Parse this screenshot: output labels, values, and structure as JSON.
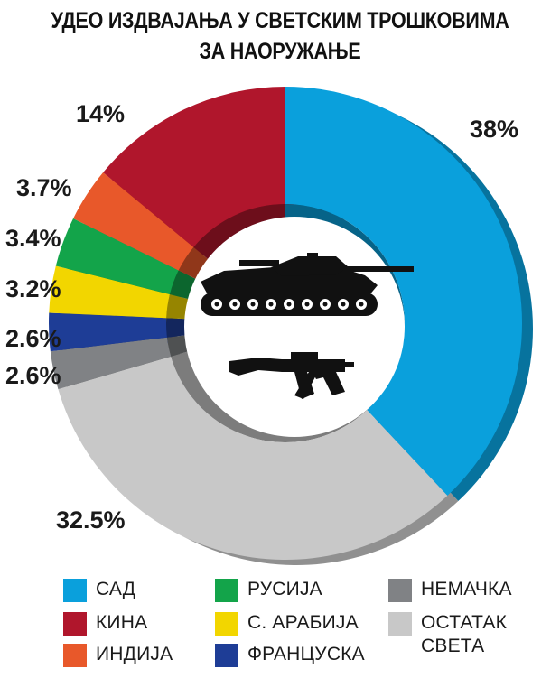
{
  "chart_data": {
    "type": "pie",
    "title_line1": "УДЕО ИЗДВАЈАЊА У СВЕТСКИМ ТРОШКОВИМА",
    "title_line2": "ЗА НАОРУЖАЊЕ",
    "slices": [
      {
        "label": "САД",
        "value": 38,
        "value_label": "38%",
        "color": "#0aa0dc"
      },
      {
        "label": "ОСТАТАК СВЕТА",
        "value": 32.5,
        "value_label": "32.5%",
        "color": "#c8c8c8"
      },
      {
        "label": "НЕМАЧКА",
        "value": 2.6,
        "value_label": "2.6%",
        "color": "#808285"
      },
      {
        "label": "ФРАНЦУСКА",
        "value": 2.6,
        "value_label": "2.6%",
        "color": "#1e3d96"
      },
      {
        "label": "С. АРАБИЈА",
        "value": 3.2,
        "value_label": "3.2%",
        "color": "#f2d600"
      },
      {
        "label": "РУСИЈА",
        "value": 3.4,
        "value_label": "3.4%",
        "color": "#13a44a"
      },
      {
        "label": "ИНДИЈА",
        "value": 3.7,
        "value_label": "3.7%",
        "color": "#e8582a"
      },
      {
        "label": "КИНА",
        "value": 14,
        "value_label": "14%",
        "color": "#b0162c"
      }
    ],
    "legend_placement": "bottom"
  },
  "legend": {
    "col1": [
      {
        "label": "САД",
        "color": "#0aa0dc"
      },
      {
        "label": "КИНА",
        "color": "#b0162c"
      },
      {
        "label": "ИНДИЈА",
        "color": "#e8582a"
      }
    ],
    "col2": [
      {
        "label": "РУСИЈА",
        "color": "#13a44a"
      },
      {
        "label": "С. АРАБИЈА",
        "color": "#f2d600"
      },
      {
        "label": "ФРАНЦУСКА",
        "color": "#1e3d96"
      }
    ],
    "col3": [
      {
        "label": "НЕМАЧКА",
        "color": "#808285"
      },
      {
        "label": "ОСТАТАК",
        "label2": "СВЕТА",
        "color": "#c8c8c8"
      }
    ]
  },
  "icons": [
    "tank-icon",
    "rifle-icon"
  ]
}
